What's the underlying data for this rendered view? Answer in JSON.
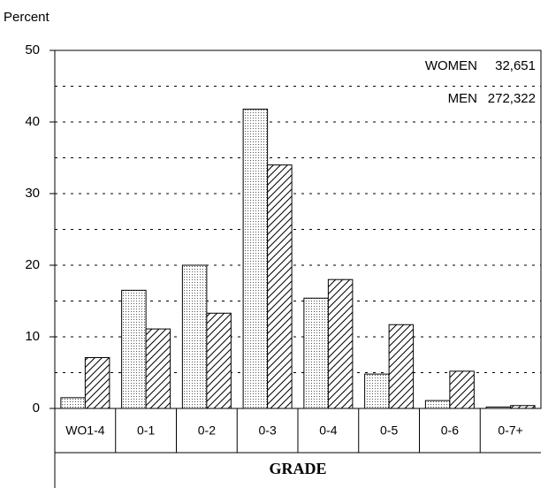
{
  "chart_data": {
    "type": "bar",
    "y_label": "Percent",
    "x_label": "GRADE",
    "categories": [
      "WO1-4",
      "0-1",
      "0-2",
      "0-3",
      "0-4",
      "0-5",
      "0-6",
      "0-7+"
    ],
    "series": [
      {
        "name": "WOMEN",
        "total": {
          "value": 32651,
          "label": "32,651"
        },
        "pattern": "dots",
        "color": "#000000",
        "values": [
          1.5,
          16.5,
          20,
          41.8,
          15.4,
          4.8,
          1.1,
          0.2
        ]
      },
      {
        "name": "MEN",
        "total": {
          "value": 272322,
          "label": "272,322"
        },
        "pattern": "hatch",
        "color": "#000000",
        "values": [
          7.1,
          11.1,
          13.3,
          34,
          18,
          11.7,
          5.2,
          0.4
        ]
      }
    ],
    "ylim": [
      0,
      50
    ],
    "yticks": [
      0,
      10,
      20,
      30,
      40,
      50
    ],
    "grid_lines": [
      5,
      10,
      15,
      20,
      25,
      30,
      35,
      40,
      45
    ],
    "grid": true
  }
}
